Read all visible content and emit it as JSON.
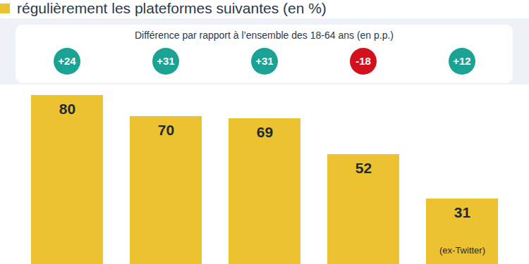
{
  "chart_data": {
    "type": "bar",
    "title": "régulièrement les plateformes suivantes (en %)",
    "categories": [
      null,
      null,
      null,
      null,
      null
    ],
    "values": [
      80,
      70,
      69,
      52,
      31
    ],
    "color": "#ecc231",
    "ylim": [
      0,
      85
    ],
    "yticks": [],
    "tick_labels": false,
    "data_labels": true,
    "differences_title": "Différence par rapport à l’ensemble des 18-64 ans (en p.p.)",
    "differences": [
      24,
      31,
      31,
      -18,
      12
    ],
    "difference_labels": [
      "+24",
      "+31",
      "+31",
      "-18",
      "+12"
    ],
    "annotations": [
      {
        "text": "(ex-Twitter)",
        "index": 4
      }
    ]
  }
}
